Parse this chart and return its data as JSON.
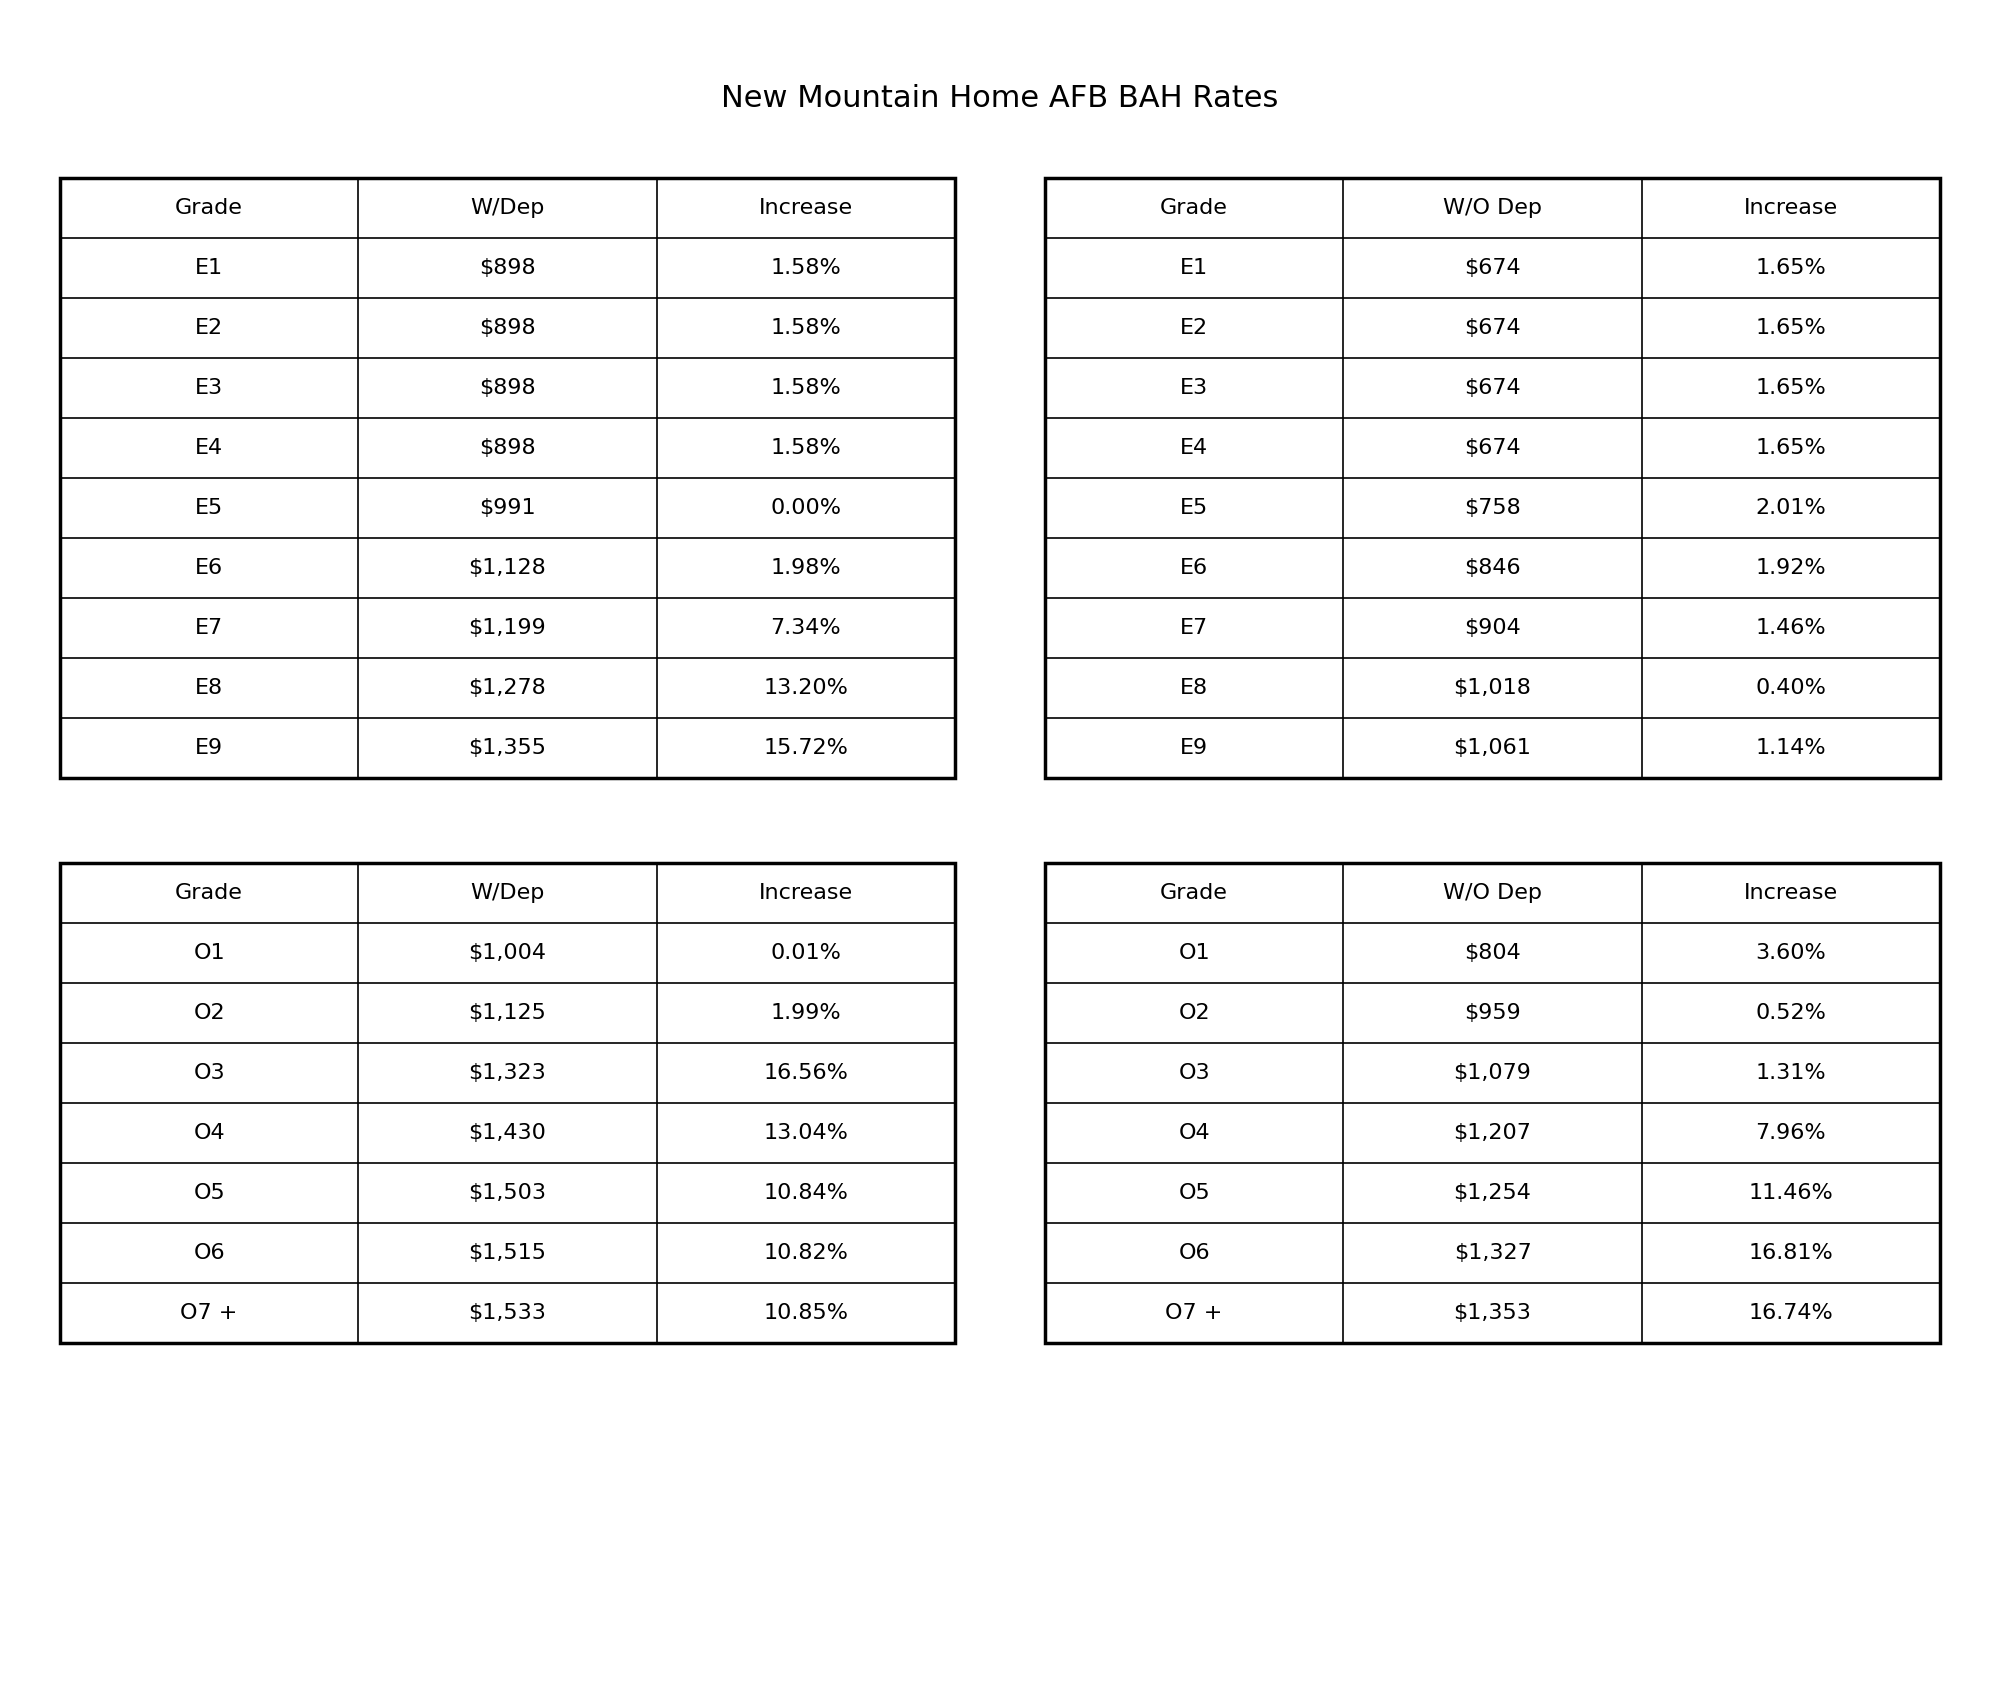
{
  "title": "New Mountain Home AFB BAH Rates",
  "title_fontsize": 22,
  "bg_color": "#ffffff",
  "text_color": "#000000",
  "table_border_lw": 2.5,
  "cell_border_lw": 1.2,
  "font_size": 16,
  "header_font_size": 16,
  "tables": [
    {
      "id": "top_left",
      "headers": [
        "Grade",
        "W/Dep",
        "Increase"
      ],
      "rows": [
        [
          "E1",
          "$898",
          "1.58%"
        ],
        [
          "E2",
          "$898",
          "1.58%"
        ],
        [
          "E3",
          "$898",
          "1.58%"
        ],
        [
          "E4",
          "$898",
          "1.58%"
        ],
        [
          "E5",
          "$991",
          "0.00%"
        ],
        [
          "E6",
          "$1,128",
          "1.98%"
        ],
        [
          "E7",
          "$1,199",
          "7.34%"
        ],
        [
          "E8",
          "$1,278",
          "13.20%"
        ],
        [
          "E9",
          "$1,355",
          "15.72%"
        ]
      ]
    },
    {
      "id": "top_right",
      "headers": [
        "Grade",
        "W/O Dep",
        "Increase"
      ],
      "rows": [
        [
          "E1",
          "$674",
          "1.65%"
        ],
        [
          "E2",
          "$674",
          "1.65%"
        ],
        [
          "E3",
          "$674",
          "1.65%"
        ],
        [
          "E4",
          "$674",
          "1.65%"
        ],
        [
          "E5",
          "$758",
          "2.01%"
        ],
        [
          "E6",
          "$846",
          "1.92%"
        ],
        [
          "E7",
          "$904",
          "1.46%"
        ],
        [
          "E8",
          "$1,018",
          "0.40%"
        ],
        [
          "E9",
          "$1,061",
          "1.14%"
        ]
      ]
    },
    {
      "id": "bottom_left",
      "headers": [
        "Grade",
        "W/Dep",
        "Increase"
      ],
      "rows": [
        [
          "O1",
          "$1,004",
          "0.01%"
        ],
        [
          "O2",
          "$1,125",
          "1.99%"
        ],
        [
          "O3",
          "$1,323",
          "16.56%"
        ],
        [
          "O4",
          "$1,430",
          "13.04%"
        ],
        [
          "O5",
          "$1,503",
          "10.84%"
        ],
        [
          "O6",
          "$1,515",
          "10.82%"
        ],
        [
          "O7 +",
          "$1,533",
          "10.85%"
        ]
      ]
    },
    {
      "id": "bottom_right",
      "headers": [
        "Grade",
        "W/O Dep",
        "Increase"
      ],
      "rows": [
        [
          "O1",
          "$804",
          "3.60%"
        ],
        [
          "O2",
          "$959",
          "0.52%"
        ],
        [
          "O3",
          "$1,079",
          "1.31%"
        ],
        [
          "O4",
          "$1,207",
          "7.96%"
        ],
        [
          "O5",
          "$1,254",
          "11.46%"
        ],
        [
          "O6",
          "$1,327",
          "16.81%"
        ],
        [
          "O7 +",
          "$1,353",
          "16.74%"
        ]
      ]
    }
  ]
}
